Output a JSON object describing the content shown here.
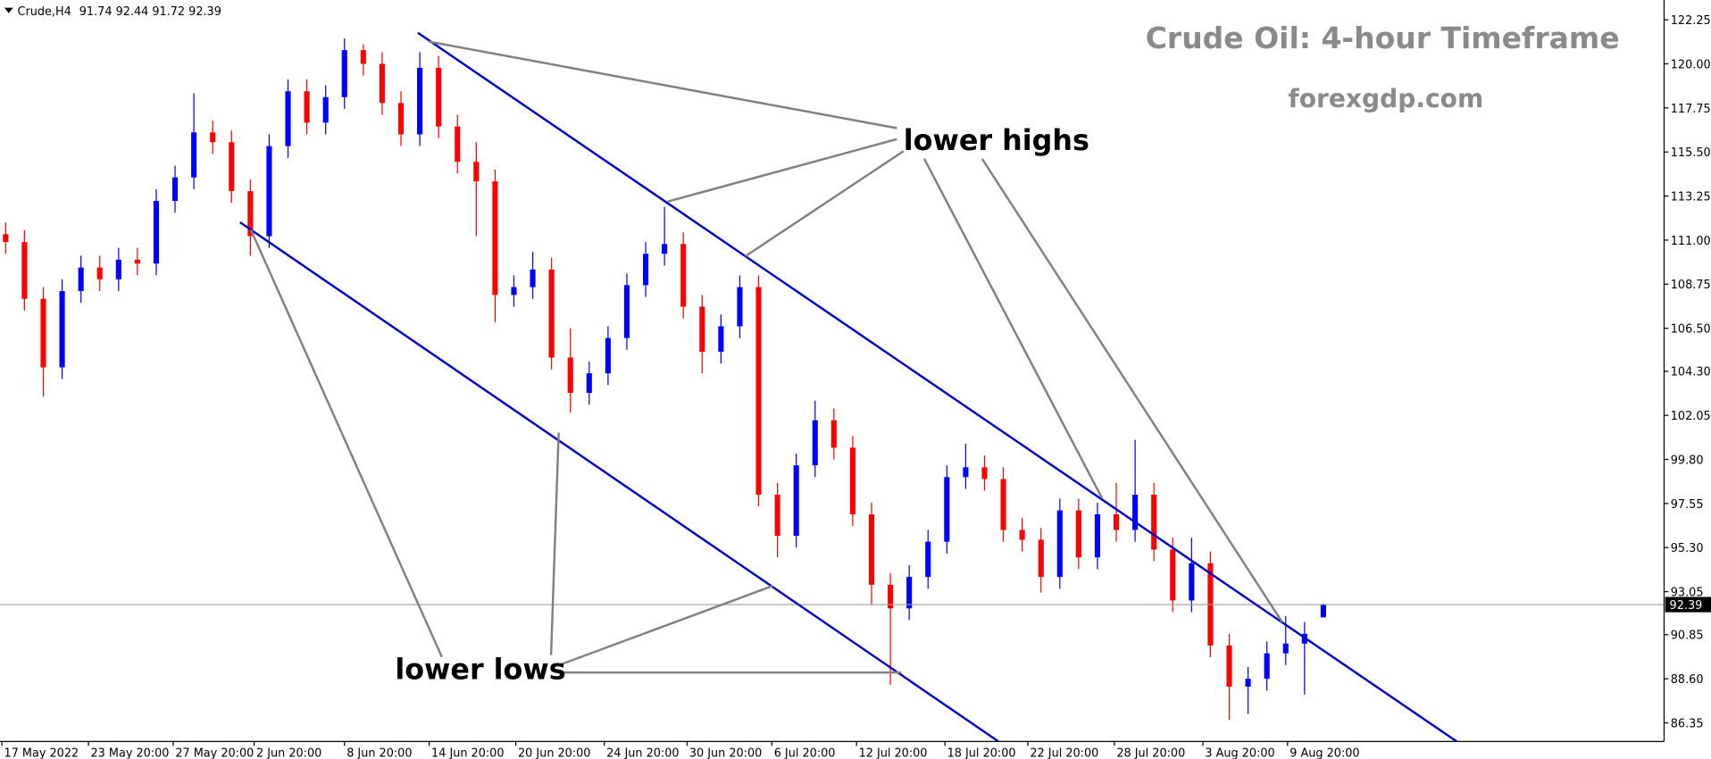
{
  "chart_data": {
    "type": "candlestick",
    "symbol": "Crude,H4",
    "title": "Crude Oil: 4-hour Timeframe",
    "subtitle": "forexgdp.com",
    "annotations": [
      "lower highs",
      "lower lows"
    ],
    "up_color": "#0000ff",
    "down_color": "#ff0000",
    "x": [
      0,
      1,
      2,
      3,
      4,
      5,
      6,
      7,
      8,
      9,
      10,
      11,
      12,
      13,
      14,
      15,
      16,
      17,
      18,
      19,
      20,
      21,
      22,
      23,
      24,
      25,
      26,
      27,
      28,
      29,
      30,
      31,
      32,
      33,
      34,
      35,
      36,
      37,
      38,
      39,
      40,
      41,
      42,
      43,
      44,
      45,
      46,
      47,
      48,
      49,
      50,
      51,
      52,
      53,
      54,
      55,
      56,
      57,
      58,
      59,
      60,
      61,
      62,
      63,
      64,
      65,
      66,
      67,
      68,
      69,
      70
    ],
    "open": [
      111.3,
      110.9,
      108.0,
      104.5,
      108.4,
      109.6,
      109.0,
      110.0,
      109.8,
      113.0,
      114.2,
      116.5,
      116.0,
      113.5,
      111.2,
      115.8,
      118.6,
      117.0,
      118.3,
      120.7,
      120.0,
      118.0,
      116.4,
      119.8,
      116.8,
      115.0,
      114.0,
      108.2,
      108.6,
      109.5,
      105.0,
      103.2,
      104.2,
      106.0,
      108.7,
      110.3,
      110.8,
      107.6,
      105.3,
      106.6,
      108.6,
      98.0,
      95.9,
      99.5,
      101.8,
      100.4,
      97.0,
      93.4,
      92.2,
      93.8,
      95.6,
      98.9,
      99.4,
      98.8,
      96.2,
      95.7,
      93.8,
      97.2,
      94.8,
      97.0,
      96.2,
      98.0,
      95.2,
      92.6,
      94.5,
      90.3,
      88.2,
      88.6,
      89.9,
      90.4,
      91.74
    ],
    "high": [
      111.9,
      111.5,
      108.6,
      109.0,
      110.2,
      110.2,
      110.6,
      110.6,
      113.6,
      114.8,
      118.5,
      117.1,
      116.6,
      114.1,
      116.4,
      119.2,
      119.2,
      118.9,
      121.3,
      121.0,
      120.6,
      118.6,
      120.6,
      120.4,
      117.4,
      116.0,
      114.6,
      109.2,
      110.4,
      110.1,
      106.5,
      104.8,
      106.6,
      109.3,
      110.9,
      112.7,
      111.4,
      108.2,
      107.2,
      109.2,
      109.2,
      98.6,
      100.1,
      102.8,
      102.4,
      101.0,
      97.6,
      94.0,
      94.4,
      96.2,
      99.5,
      100.6,
      100.0,
      99.4,
      96.8,
      96.3,
      97.8,
      97.8,
      97.6,
      98.6,
      100.8,
      98.6,
      95.8,
      95.8,
      95.1,
      90.9,
      89.2,
      90.5,
      91.8,
      91.5,
      92.44
    ],
    "low": [
      110.3,
      107.4,
      103.0,
      103.9,
      107.8,
      108.4,
      108.4,
      109.2,
      109.2,
      112.4,
      113.6,
      115.4,
      112.9,
      110.2,
      110.6,
      115.2,
      116.4,
      116.4,
      117.7,
      119.4,
      117.4,
      115.8,
      115.8,
      116.2,
      114.4,
      111.2,
      106.8,
      107.6,
      108.0,
      104.4,
      102.2,
      102.6,
      103.6,
      105.4,
      108.1,
      109.7,
      107.0,
      104.2,
      104.7,
      106.0,
      97.4,
      94.8,
      95.3,
      98.9,
      99.8,
      96.4,
      92.4,
      88.3,
      91.6,
      93.2,
      95.0,
      98.3,
      98.2,
      95.6,
      95.1,
      93.0,
      93.2,
      94.2,
      94.2,
      95.6,
      95.6,
      94.6,
      92.0,
      92.0,
      89.7,
      86.5,
      86.8,
      88.0,
      89.3,
      87.8,
      91.72
    ],
    "close": [
      110.9,
      108.0,
      104.5,
      108.4,
      109.6,
      109.0,
      110.0,
      109.8,
      113.0,
      114.2,
      116.5,
      116.0,
      113.5,
      111.2,
      115.8,
      118.6,
      117.0,
      118.3,
      120.7,
      120.0,
      118.0,
      116.4,
      119.8,
      116.8,
      115.0,
      114.0,
      108.2,
      108.6,
      109.5,
      105.0,
      103.2,
      104.2,
      106.0,
      108.7,
      110.3,
      110.8,
      107.6,
      105.3,
      106.6,
      108.6,
      98.0,
      95.9,
      99.5,
      101.8,
      100.4,
      97.0,
      93.4,
      92.2,
      93.8,
      95.6,
      98.9,
      99.4,
      98.8,
      96.2,
      95.7,
      93.8,
      97.2,
      94.8,
      97.0,
      96.2,
      98.0,
      95.2,
      92.6,
      94.5,
      90.3,
      88.2,
      88.6,
      89.9,
      90.4,
      90.9,
      92.39
    ],
    "current_price": 92.39,
    "current_price_color": "#a0a0a0",
    "xlim": [
      -0.3,
      88.1
    ],
    "xticks": [
      {
        "value": -0.2,
        "label": "17 May 2022"
      },
      {
        "value": 4.4,
        "label": "23 May 20:00"
      },
      {
        "value": 8.9,
        "label": "27 May 20:00"
      },
      {
        "value": 13.2,
        "label": "2 Jun 20:00"
      },
      {
        "value": 18.0,
        "label": "8 Jun 20:00"
      },
      {
        "value": 22.5,
        "label": "14 Jun 20:00"
      },
      {
        "value": 27.1,
        "label": "20 Jun 20:00"
      },
      {
        "value": 31.8,
        "label": "24 Jun 20:00"
      },
      {
        "value": 36.2,
        "label": "30 Jun 20:00"
      },
      {
        "value": 40.7,
        "label": "6 Jul 20:00"
      },
      {
        "value": 45.2,
        "label": "12 Jul 20:00"
      },
      {
        "value": 49.9,
        "label": "18 Jul 20:00"
      },
      {
        "value": 54.3,
        "label": "22 Jul 20:00"
      },
      {
        "value": 58.9,
        "label": "28 Jul 20:00"
      },
      {
        "value": 63.6,
        "label": "3 Aug 20:00"
      },
      {
        "value": 68.1,
        "label": "9 Aug 20:00"
      }
    ],
    "ylim": [
      85.4,
      123.26
    ],
    "yticks": [
      122.25,
      {
        "value": 120,
        "label": "120.00"
      },
      117.75,
      {
        "value": 115.5,
        "label": "115.50"
      },
      113.25,
      {
        "value": 111,
        "label": "111.00"
      },
      108.75,
      {
        "value": 106.5,
        "label": "106.50"
      },
      {
        "value": 104.3,
        "label": "104.30"
      },
      102.05,
      {
        "value": 99.8,
        "label": "99.80"
      },
      97.55,
      {
        "value": 95.3,
        "label": "95.30"
      },
      93.05,
      90.85,
      {
        "value": 88.6,
        "label": "88.60"
      },
      86.35
    ]
  }
}
